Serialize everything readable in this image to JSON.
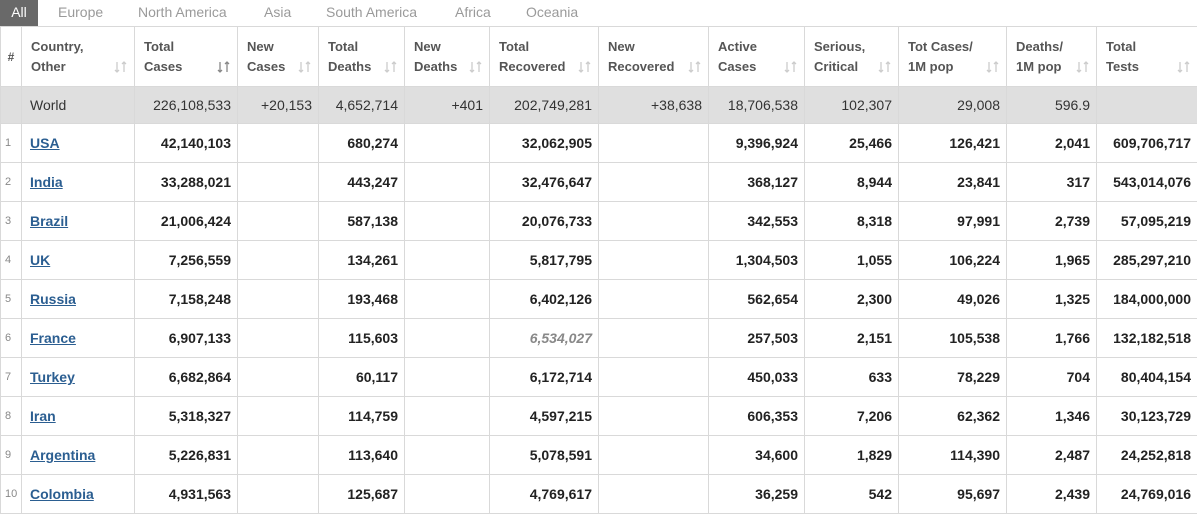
{
  "tabs": [
    "All",
    "Europe",
    "North America",
    "Asia",
    "South America",
    "Africa",
    "Oceania"
  ],
  "columns": [
    {
      "l1": "#",
      "l2": ""
    },
    {
      "l1": "Country,",
      "l2": "Other"
    },
    {
      "l1": "Total",
      "l2": "Cases"
    },
    {
      "l1": "New",
      "l2": "Cases"
    },
    {
      "l1": "Total",
      "l2": "Deaths"
    },
    {
      "l1": "New",
      "l2": "Deaths"
    },
    {
      "l1": "Total",
      "l2": "Recovered"
    },
    {
      "l1": "New",
      "l2": "Recovered"
    },
    {
      "l1": "Active",
      "l2": "Cases"
    },
    {
      "l1": "Serious,",
      "l2": "Critical"
    },
    {
      "l1": "Tot Cases/",
      "l2": "1M pop"
    },
    {
      "l1": "Deaths/",
      "l2": "1M pop"
    },
    {
      "l1": "Total",
      "l2": "Tests"
    }
  ],
  "world": [
    "",
    "World",
    "226,108,533",
    "+20,153",
    "4,652,714",
    "+401",
    "202,749,281",
    "+38,638",
    "18,706,538",
    "102,307",
    "29,008",
    "596.9",
    ""
  ],
  "rows": [
    [
      "1",
      "USA",
      "42,140,103",
      "",
      "680,274",
      "",
      "32,062,905",
      "",
      "9,396,924",
      "25,466",
      "126,421",
      "2,041",
      "609,706,717"
    ],
    [
      "2",
      "India",
      "33,288,021",
      "",
      "443,247",
      "",
      "32,476,647",
      "",
      "368,127",
      "8,944",
      "23,841",
      "317",
      "543,014,076"
    ],
    [
      "3",
      "Brazil",
      "21,006,424",
      "",
      "587,138",
      "",
      "20,076,733",
      "",
      "342,553",
      "8,318",
      "97,991",
      "2,739",
      "57,095,219"
    ],
    [
      "4",
      "UK",
      "7,256,559",
      "",
      "134,261",
      "",
      "5,817,795",
      "",
      "1,304,503",
      "1,055",
      "106,224",
      "1,965",
      "285,297,210"
    ],
    [
      "5",
      "Russia",
      "7,158,248",
      "",
      "193,468",
      "",
      "6,402,126",
      "",
      "562,654",
      "2,300",
      "49,026",
      "1,325",
      "184,000,000"
    ],
    [
      "6",
      "France",
      "6,907,133",
      "",
      "115,603",
      "",
      "6,534,027",
      "",
      "257,503",
      "2,151",
      "105,538",
      "1,766",
      "132,182,518"
    ],
    [
      "7",
      "Turkey",
      "6,682,864",
      "",
      "60,117",
      "",
      "6,172,714",
      "",
      "450,033",
      "633",
      "78,229",
      "704",
      "80,404,154"
    ],
    [
      "8",
      "Iran",
      "5,318,327",
      "",
      "114,759",
      "",
      "4,597,215",
      "",
      "606,353",
      "7,206",
      "62,362",
      "1,346",
      "30,123,729"
    ],
    [
      "9",
      "Argentina",
      "5,226,831",
      "",
      "113,640",
      "",
      "5,078,591",
      "",
      "34,600",
      "1,829",
      "114,390",
      "2,487",
      "24,252,818"
    ],
    [
      "10",
      "Colombia",
      "4,931,563",
      "",
      "125,687",
      "",
      "4,769,617",
      "",
      "36,259",
      "542",
      "95,697",
      "2,439",
      "24,769,016"
    ]
  ]
}
